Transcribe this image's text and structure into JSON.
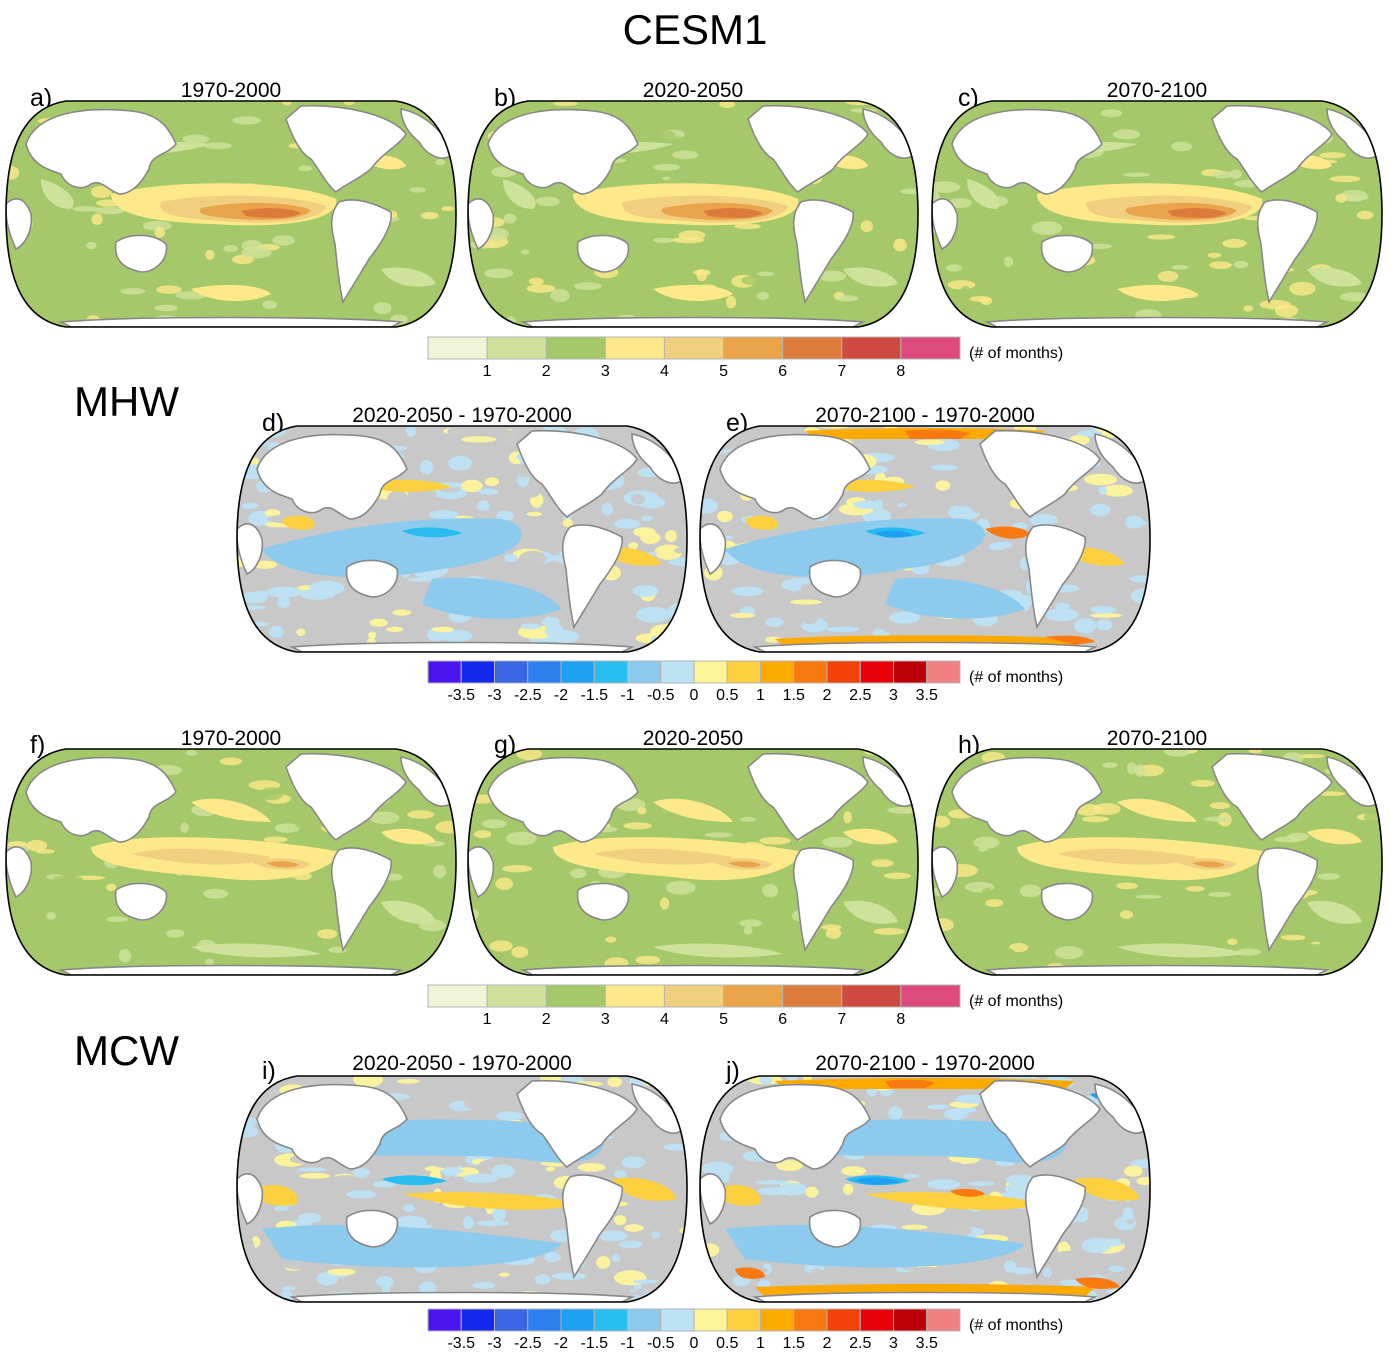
{
  "title": "CESM1",
  "sections": {
    "mhw": "MHW",
    "mcw": "MCW"
  },
  "panels": [
    {
      "id": "a",
      "letter": "a)",
      "title": "1970-2000",
      "kind": "abs",
      "var": "mhw",
      "intensity": 1.0
    },
    {
      "id": "b",
      "letter": "b)",
      "title": "2020-2050",
      "kind": "abs",
      "var": "mhw",
      "intensity": 0.95
    },
    {
      "id": "c",
      "letter": "c)",
      "title": "2070-2100",
      "kind": "abs",
      "var": "mhw",
      "intensity": 0.9
    },
    {
      "id": "d",
      "letter": "d)",
      "title": "2020-2050 - 1970-2000",
      "kind": "diff",
      "var": "mhw",
      "intensity": 0.6
    },
    {
      "id": "e",
      "letter": "e)",
      "title": "2070-2100 - 1970-2000",
      "kind": "diff",
      "var": "mhw",
      "intensity": 1.0
    },
    {
      "id": "f",
      "letter": "f)",
      "title": "1970-2000",
      "kind": "abs",
      "var": "mcw",
      "intensity": 1.0
    },
    {
      "id": "g",
      "letter": "g)",
      "title": "2020-2050",
      "kind": "abs",
      "var": "mcw",
      "intensity": 0.95
    },
    {
      "id": "h",
      "letter": "h)",
      "title": "2070-2100",
      "kind": "abs",
      "var": "mcw",
      "intensity": 0.9
    },
    {
      "id": "i",
      "letter": "i)",
      "title": "2020-2050 - 1970-2000",
      "kind": "diff",
      "var": "mcw",
      "intensity": 0.6
    },
    {
      "id": "j",
      "letter": "j)",
      "title": "2070-2100 - 1970-2000",
      "kind": "diff",
      "var": "mcw",
      "intensity": 1.0
    }
  ],
  "colorbars": {
    "absolute": {
      "colors": [
        "#f0f5d8",
        "#cfe29b",
        "#a5c96a",
        "#fde88a",
        "#f1cf80",
        "#e9a449",
        "#dc7a3c",
        "#d04a42",
        "#dd4a7c"
      ],
      "ticks": [
        "1",
        "2",
        "3",
        "4",
        "5",
        "6",
        "7",
        "8"
      ],
      "unit": "(# of months)"
    },
    "difference": {
      "colors": [
        "#4b14ee",
        "#1428ee",
        "#3c64e6",
        "#2d80f0",
        "#1ea0f0",
        "#28bcf0",
        "#8ccaee",
        "#bde2f4",
        "#fdf49a",
        "#fdd040",
        "#fdaa00",
        "#f87a10",
        "#f24208",
        "#e8000a",
        "#bb0008",
        "#f08080"
      ],
      "ticks": [
        "-3.5",
        "-3",
        "-2.5",
        "-2",
        "-1.5",
        "-1",
        "-0.5",
        "0",
        "0.5",
        "1",
        "1.5",
        "2",
        "2.5",
        "3",
        "3.5"
      ],
      "unit": "(# of months)"
    }
  },
  "chart_data": {
    "type": "heatmap",
    "description_title": "CESM1",
    "variables": [
      "MHW",
      "MCW"
    ],
    "periods": [
      "1970-2000",
      "2020-2050",
      "2070-2100"
    ],
    "differences": [
      "2020-2050 - 1970-2000",
      "2070-2100 - 1970-2000"
    ],
    "absolute_levels": [
      1,
      2,
      3,
      4,
      5,
      6,
      7,
      8
    ],
    "difference_levels": [
      -3.5,
      -3,
      -2.5,
      -2,
      -1.5,
      -1,
      -0.5,
      0,
      0.5,
      1,
      1.5,
      2,
      2.5,
      3,
      3.5
    ],
    "unit": "(# of months)",
    "projection": "Robinson, Pacific-centred"
  }
}
